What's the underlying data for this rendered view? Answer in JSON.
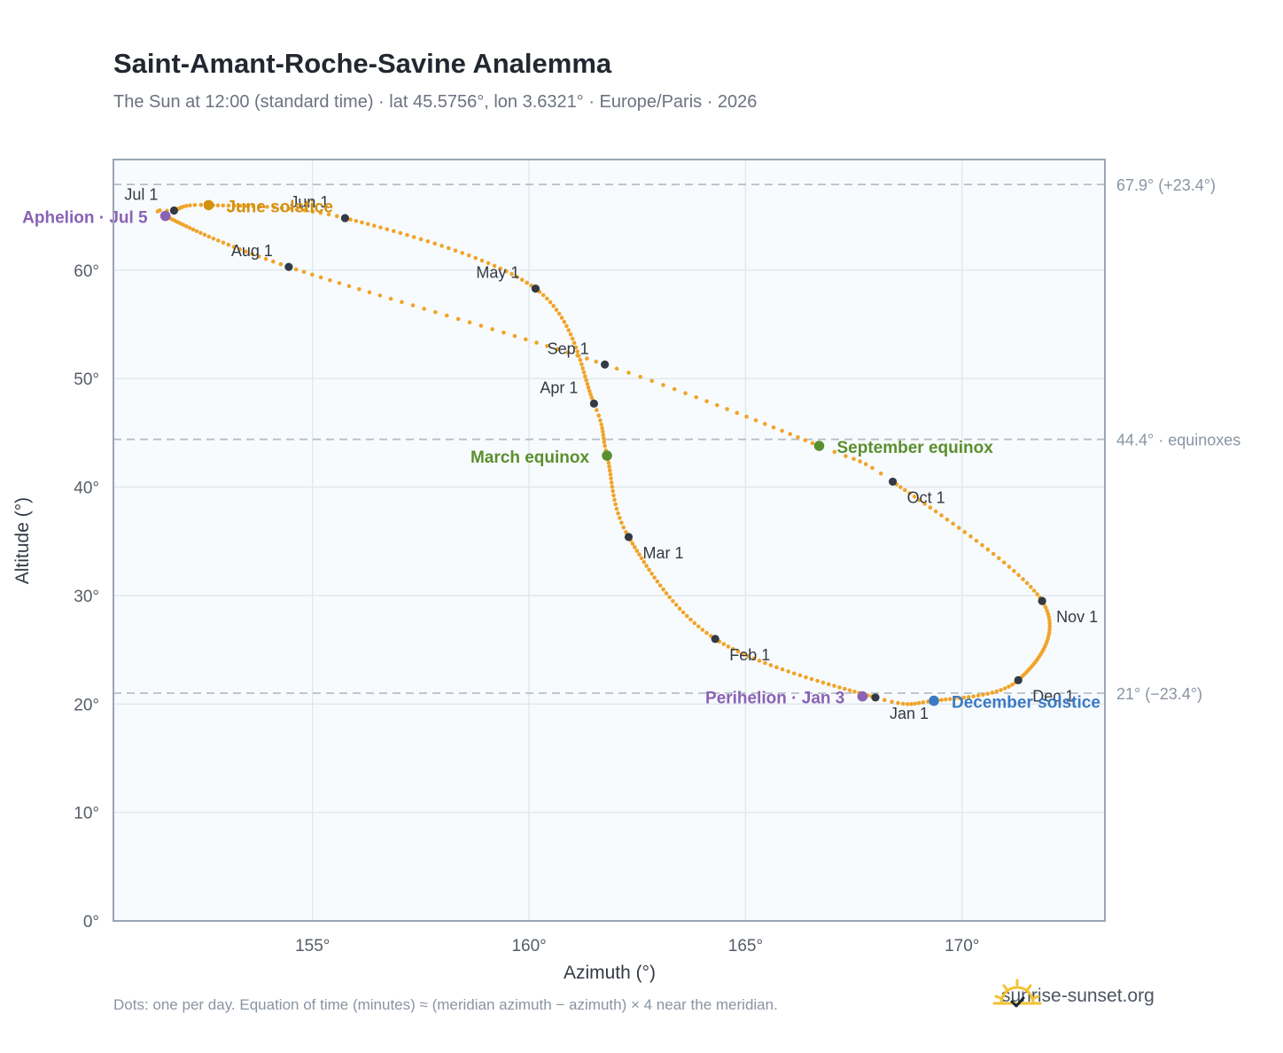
{
  "header": {
    "title": "Saint-Amant-Roche-Savine Analemma",
    "subtitle": "The Sun at 12:00 (standard time) · lat 45.5756°, lon 3.6321° · Europe/Paris · 2026"
  },
  "footer": {
    "note": "Dots: one per day. Equation of time (minutes) ≈ (meridian azimuth − azimuth) × 4 near the meridian.",
    "brand": "sunrise-sunset.org",
    "brand_icon": "sunrise-logo-icon"
  },
  "colors": {
    "curve": "#f0a42a",
    "month_marker": "#333a45",
    "solstice_june": "#d4900f",
    "solstice_december": "#3a7ac4",
    "equinox": "#5a8f2f",
    "apsis": "#8a62b5",
    "plot_bg": "#f8fbfd",
    "grid": "#e2e8ee",
    "frame": "#9aa5b4",
    "reference": "#b6bfc9"
  },
  "chart_data": {
    "type": "scatter",
    "title": "Saint-Amant-Roche-Savine Analemma",
    "xlabel": "Azimuth (°)",
    "ylabel": "Altitude (°)",
    "xlim": [
      150.4,
      173.3
    ],
    "ylim": [
      0,
      70.2
    ],
    "x_ticks": [
      155,
      160,
      165,
      170
    ],
    "x_tick_labels": [
      "155°",
      "160°",
      "165°",
      "170°"
    ],
    "y_ticks": [
      0,
      10,
      20,
      30,
      40,
      50,
      60
    ],
    "y_tick_labels": [
      "0°",
      "10°",
      "20°",
      "30°",
      "40°",
      "50°",
      "60°"
    ],
    "grid": true,
    "reference_lines": [
      {
        "y": 67.9,
        "label": "67.9° (+23.4°)"
      },
      {
        "y": 44.4,
        "label": "44.4° · equinoxes"
      },
      {
        "y": 21.0,
        "label": "21° (−23.4°)"
      }
    ],
    "path_anchors": [
      {
        "day": 1,
        "az": 168.0,
        "alt": 20.6
      },
      {
        "day": 32,
        "az": 164.3,
        "alt": 26.0
      },
      {
        "day": 60,
        "az": 162.3,
        "alt": 35.4
      },
      {
        "day": 79,
        "az": 161.8,
        "alt": 42.9
      },
      {
        "day": 91,
        "az": 161.5,
        "alt": 47.7
      },
      {
        "day": 121,
        "az": 160.15,
        "alt": 58.3
      },
      {
        "day": 152,
        "az": 155.75,
        "alt": 64.8
      },
      {
        "day": 172,
        "az": 152.6,
        "alt": 66.0
      },
      {
        "day": 182,
        "az": 151.8,
        "alt": 65.5
      },
      {
        "day": 186,
        "az": 151.6,
        "alt": 65.0
      },
      {
        "day": 213,
        "az": 154.45,
        "alt": 60.3
      },
      {
        "day": 244,
        "az": 161.75,
        "alt": 51.3
      },
      {
        "day": 266,
        "az": 166.7,
        "alt": 43.8
      },
      {
        "day": 274,
        "az": 168.4,
        "alt": 40.5
      },
      {
        "day": 305,
        "az": 171.85,
        "alt": 29.5
      },
      {
        "day": 335,
        "az": 171.3,
        "alt": 22.2
      },
      {
        "day": 355,
        "az": 169.35,
        "alt": 20.3
      },
      {
        "day": 366,
        "az": 168.0,
        "alt": 20.6
      }
    ],
    "month_markers": [
      {
        "label": "Jan 1",
        "az": 168.0,
        "alt": 20.6
      },
      {
        "label": "Feb 1",
        "az": 164.3,
        "alt": 26.0
      },
      {
        "label": "Mar 1",
        "az": 162.3,
        "alt": 35.4
      },
      {
        "label": "Apr 1",
        "az": 161.5,
        "alt": 47.7
      },
      {
        "label": "May 1",
        "az": 160.15,
        "alt": 58.3
      },
      {
        "label": "Jun 1",
        "az": 155.75,
        "alt": 64.8
      },
      {
        "label": "Jul 1",
        "az": 151.8,
        "alt": 65.5
      },
      {
        "label": "Aug 1",
        "az": 154.45,
        "alt": 60.3
      },
      {
        "label": "Sep 1",
        "az": 161.75,
        "alt": 51.3
      },
      {
        "label": "Oct 1",
        "az": 168.4,
        "alt": 40.5
      },
      {
        "label": "Nov 1",
        "az": 171.85,
        "alt": 29.5
      },
      {
        "label": "Dec 1",
        "az": 171.3,
        "alt": 22.2
      }
    ],
    "events": [
      {
        "label": "June solstice",
        "az": 152.6,
        "alt": 66.0,
        "kind": "solstice_june"
      },
      {
        "label": "December solstice",
        "az": 169.35,
        "alt": 20.3,
        "kind": "solstice_december"
      },
      {
        "label": "March equinox",
        "az": 161.8,
        "alt": 42.9,
        "kind": "equinox"
      },
      {
        "label": "September equinox",
        "az": 166.7,
        "alt": 43.8,
        "kind": "equinox"
      },
      {
        "label": "Aphelion · Jul 5",
        "az": 151.6,
        "alt": 65.0,
        "kind": "apsis"
      },
      {
        "label": "Perihelion · Jan 3",
        "az": 167.7,
        "alt": 20.7,
        "kind": "apsis"
      }
    ]
  }
}
